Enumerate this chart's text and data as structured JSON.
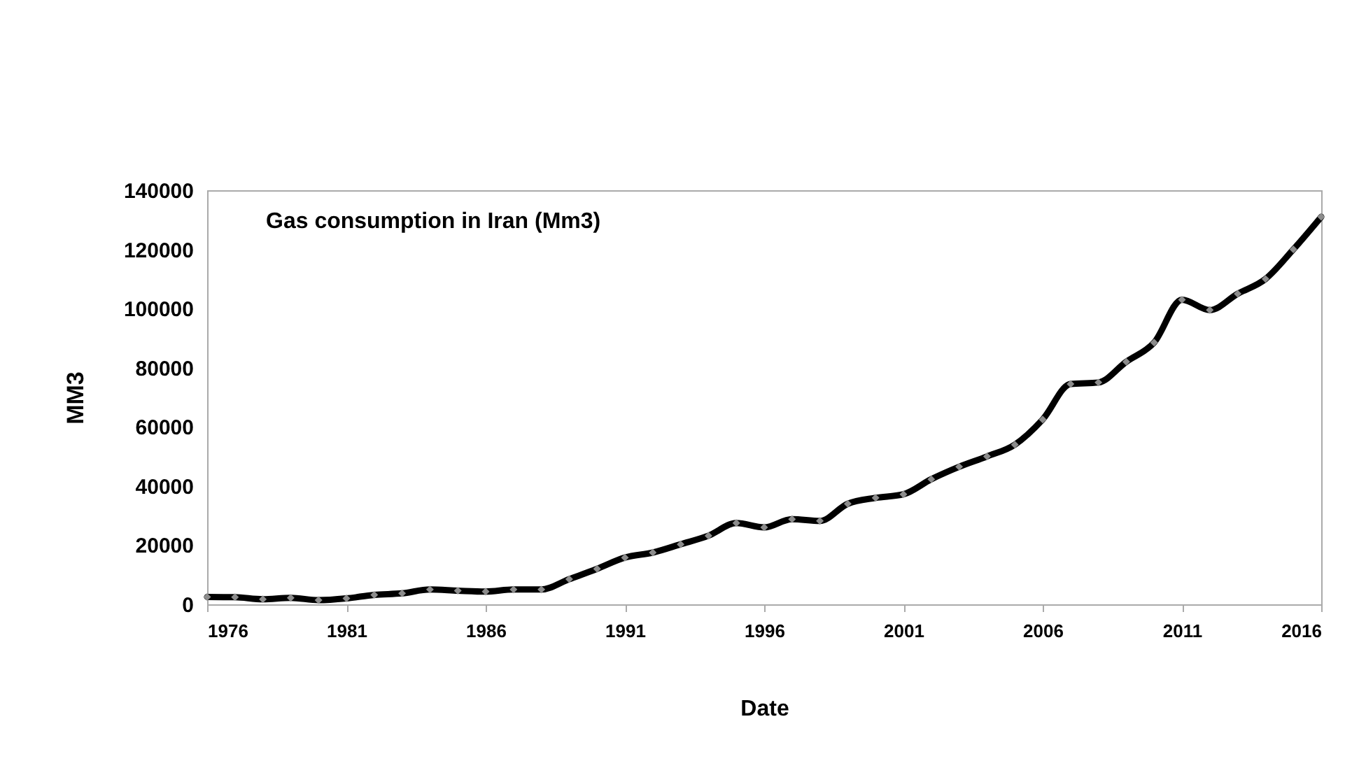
{
  "chart_data": {
    "type": "line",
    "title": "Gas consumption in Iran (Mm3)",
    "xlabel": "Date",
    "ylabel": "MM3",
    "x": [
      1976,
      1977,
      1978,
      1979,
      1980,
      1981,
      1982,
      1983,
      1984,
      1985,
      1986,
      1987,
      1988,
      1989,
      1990,
      1991,
      1992,
      1993,
      1994,
      1995,
      1996,
      1997,
      1998,
      1999,
      2000,
      2001,
      2002,
      2003,
      2004,
      2005,
      2006,
      2007,
      2008,
      2009,
      2010,
      2011,
      2012,
      2013,
      2014,
      2015,
      2016
    ],
    "series": [
      {
        "color": "#000000",
        "values": [
          2500,
          2400,
          1700,
          2200,
          1400,
          2000,
          3200,
          3700,
          5000,
          4600,
          4300,
          5000,
          5000,
          8500,
          12000,
          15800,
          17500,
          20300,
          23200,
          27500,
          26000,
          28800,
          28200,
          34000,
          36000,
          37200,
          42300,
          46500,
          50000,
          54000,
          62500,
          74500,
          75000,
          82000,
          88500,
          103000,
          99500,
          105000,
          110000,
          120000,
          131000
        ]
      }
    ],
    "xlim": [
      1976,
      2016
    ],
    "xticks": [
      1976,
      1981,
      1986,
      1991,
      1996,
      2001,
      2006,
      2011,
      2016
    ],
    "ylim": [
      0,
      140000
    ],
    "yticks": [
      0,
      20000,
      40000,
      60000,
      80000,
      100000,
      120000,
      140000
    ],
    "grid": false,
    "marker": "diamond",
    "line_style": "solid"
  }
}
